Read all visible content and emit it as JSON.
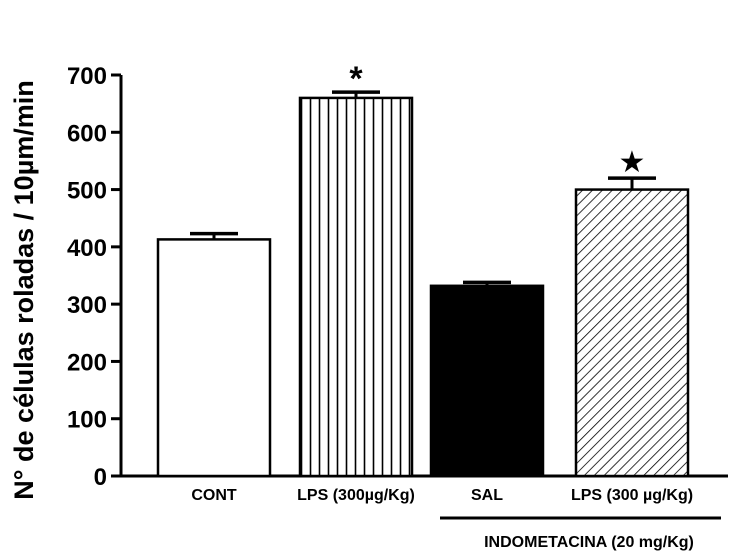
{
  "chart_data": {
    "type": "bar",
    "title": "",
    "ylabel": "N° de células roladas / 10µm/min",
    "xlabel": "",
    "ylim": [
      0,
      700
    ],
    "yticks": [
      0,
      100,
      200,
      300,
      400,
      500,
      600,
      700
    ],
    "yticks_labels": [
      "0",
      "100",
      "200",
      "300",
      "400",
      "500",
      "600",
      "700"
    ],
    "categories": [
      "CONT",
      "LPS (300µg/Kg)",
      "SAL",
      "LPS (300 µg/Kg)"
    ],
    "values": [
      413,
      660,
      332,
      500
    ],
    "errors": [
      10,
      10,
      6,
      20
    ],
    "fill_patterns": [
      "white",
      "vertical-lines",
      "solid-black",
      "diagonal-lines"
    ],
    "significance_marks": [
      "",
      "*",
      "",
      "★"
    ],
    "group_label": {
      "text": "INDOMETACINA (20 mg/Kg)",
      "spans": [
        "SAL",
        "LPS (300 µg/Kg)"
      ]
    },
    "grid": false,
    "legend": "none"
  }
}
